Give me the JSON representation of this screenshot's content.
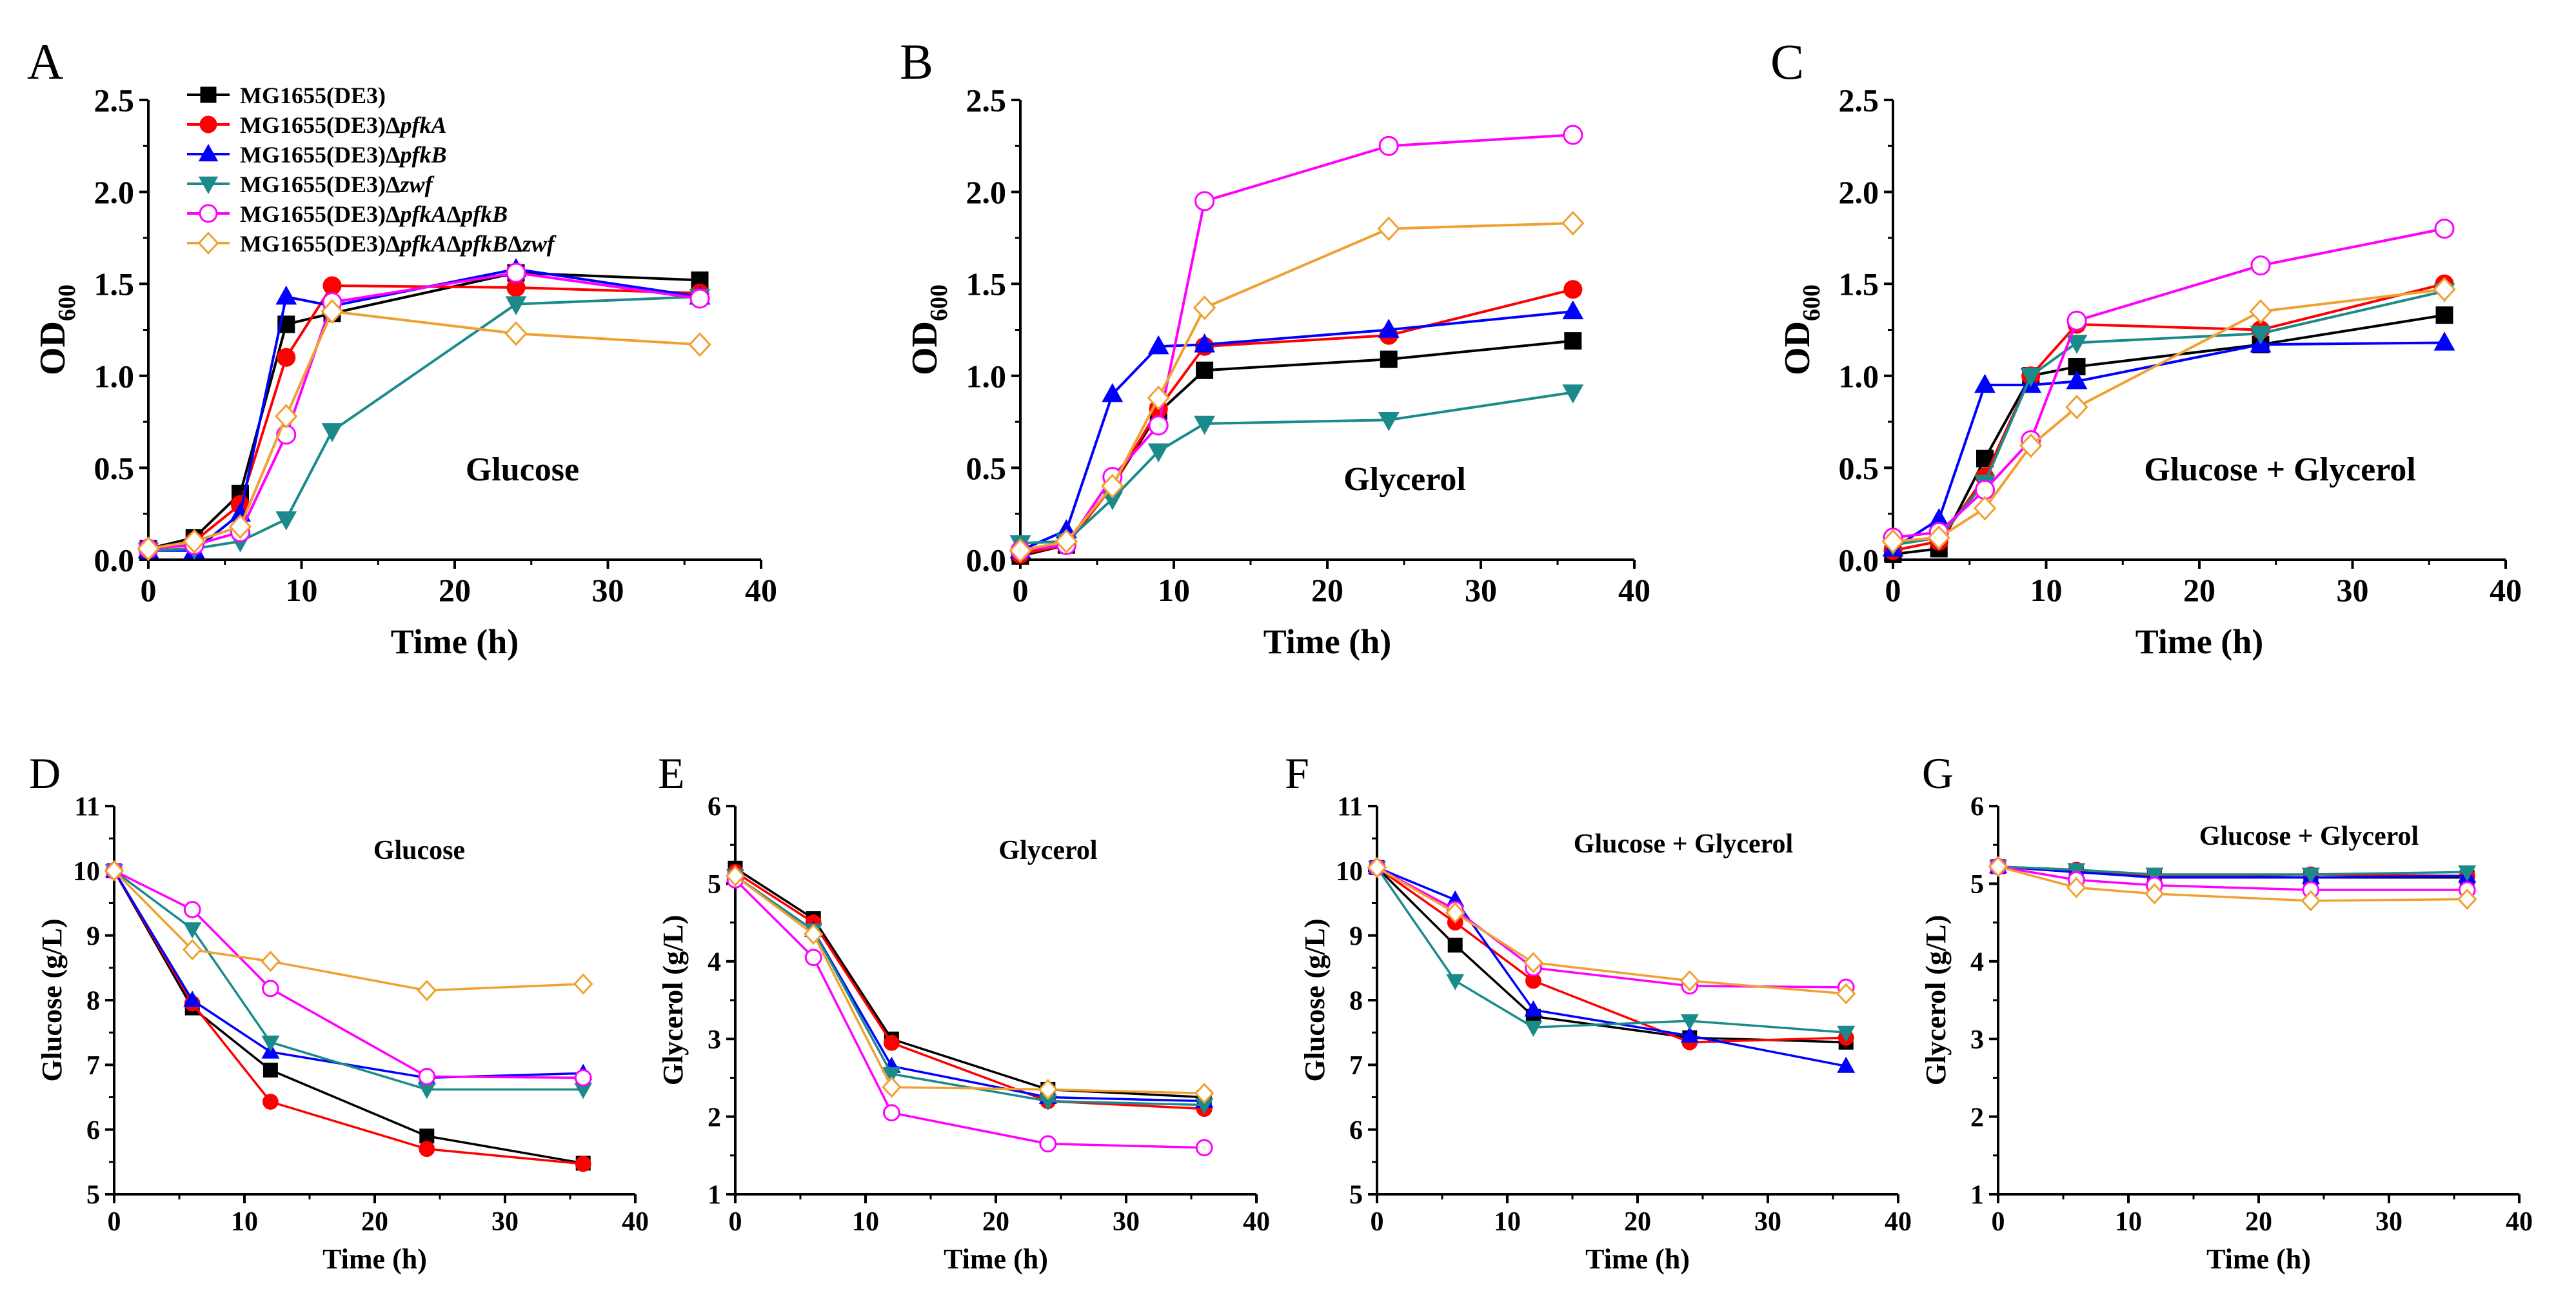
{
  "colors": {
    "s1": "#000000",
    "s2": "#ff0000",
    "s3": "#0000ff",
    "s4": "#1a8a8a",
    "s5": "#ff00ff",
    "s6": "#f0a030"
  },
  "legend_entries": [
    {
      "prefix": "MG1655(DE3)",
      "genes": []
    },
    {
      "prefix": "MG1655(DE3)",
      "genes": [
        "pfkA"
      ]
    },
    {
      "prefix": "MG1655(DE3)",
      "genes": [
        "pfkB"
      ]
    },
    {
      "prefix": "MG1655(DE3)",
      "genes": [
        "zwf"
      ]
    },
    {
      "prefix": "MG1655(DE3)",
      "genes": [
        "pfkA",
        "pfkB"
      ]
    },
    {
      "prefix": "MG1655(DE3)",
      "genes": [
        "pfkA",
        "pfkB",
        "zwf"
      ]
    }
  ],
  "chart_data": [
    {
      "panel": "A",
      "type": "line",
      "annotation": "Glucose",
      "xlabel": "Time (h)",
      "ylabel_main": "OD",
      "ylabel_sub": "600",
      "xlim": [
        0,
        40
      ],
      "ylim": [
        0,
        2.5
      ],
      "xticks": [
        0,
        10,
        20,
        30,
        40
      ],
      "yticks": [
        0.0,
        0.5,
        1.0,
        1.5,
        2.0,
        2.5
      ],
      "ydecimals": 1,
      "x": [
        0,
        3,
        6,
        9,
        12,
        24,
        36
      ],
      "series": [
        {
          "name": "MG1655(DE3)",
          "values": [
            0.06,
            0.12,
            0.36,
            1.28,
            1.34,
            1.56,
            1.52
          ]
        },
        {
          "name": "MG1655(DE3)ΔpfkA",
          "values": [
            0.06,
            0.1,
            0.3,
            1.1,
            1.49,
            1.48,
            1.45
          ]
        },
        {
          "name": "MG1655(DE3)ΔpfkB",
          "values": [
            0.05,
            0.05,
            0.25,
            1.43,
            1.38,
            1.58,
            1.43
          ]
        },
        {
          "name": "MG1655(DE3)Δzwf",
          "values": [
            0.05,
            0.06,
            0.1,
            0.22,
            0.7,
            1.39,
            1.43
          ]
        },
        {
          "name": "MG1655(DE3)ΔpfkAΔpfkB",
          "values": [
            0.06,
            0.08,
            0.15,
            0.68,
            1.4,
            1.56,
            1.42
          ]
        },
        {
          "name": "MG1655(DE3)ΔpfkAΔpfkBΔzwf",
          "values": [
            0.06,
            0.1,
            0.18,
            0.78,
            1.35,
            1.23,
            1.17
          ]
        }
      ]
    },
    {
      "panel": "B",
      "type": "line",
      "annotation": "Glycerol",
      "xlabel": "Time (h)",
      "ylabel_main": "OD",
      "ylabel_sub": "600",
      "xlim": [
        0,
        40
      ],
      "ylim": [
        0,
        2.5
      ],
      "xticks": [
        0,
        10,
        20,
        30,
        40
      ],
      "yticks": [
        0.0,
        0.5,
        1.0,
        1.5,
        2.0,
        2.5
      ],
      "ydecimals": 1,
      "x": [
        0,
        3,
        6,
        9,
        12,
        24,
        36
      ],
      "series": [
        {
          "name": "MG1655(DE3)",
          "values": [
            0.02,
            0.08,
            0.4,
            0.8,
            1.03,
            1.09,
            1.19
          ]
        },
        {
          "name": "MG1655(DE3)ΔpfkA",
          "values": [
            0.03,
            0.08,
            0.4,
            0.82,
            1.16,
            1.22,
            1.47
          ]
        },
        {
          "name": "MG1655(DE3)ΔpfkB",
          "values": [
            0.05,
            0.16,
            0.9,
            1.16,
            1.17,
            1.25,
            1.35
          ]
        },
        {
          "name": "MG1655(DE3)Δzwf",
          "values": [
            0.09,
            0.1,
            0.33,
            0.59,
            0.74,
            0.76,
            0.91
          ]
        },
        {
          "name": "MG1655(DE3)ΔpfkAΔpfkB",
          "values": [
            0.05,
            0.08,
            0.45,
            0.73,
            1.95,
            2.25,
            2.31
          ]
        },
        {
          "name": "MG1655(DE3)ΔpfkAΔpfkBΔzwf",
          "values": [
            0.05,
            0.1,
            0.4,
            0.88,
            1.37,
            1.8,
            1.83
          ]
        }
      ]
    },
    {
      "panel": "C",
      "type": "line",
      "annotation": "Glucose + Glycerol",
      "xlabel": "Time (h)",
      "ylabel_main": "OD",
      "ylabel_sub": "600",
      "xlim": [
        0,
        40
      ],
      "ylim": [
        0,
        2.5
      ],
      "xticks": [
        0,
        10,
        20,
        30,
        40
      ],
      "yticks": [
        0.0,
        0.5,
        1.0,
        1.5,
        2.0,
        2.5
      ],
      "ydecimals": 1,
      "x": [
        0,
        3,
        6,
        9,
        12,
        24,
        36
      ],
      "series": [
        {
          "name": "MG1655(DE3)",
          "values": [
            0.03,
            0.06,
            0.55,
            1.0,
            1.05,
            1.17,
            1.33
          ]
        },
        {
          "name": "MG1655(DE3)ΔpfkA",
          "values": [
            0.05,
            0.1,
            0.45,
            1.0,
            1.28,
            1.25,
            1.5
          ]
        },
        {
          "name": "MG1655(DE3)ΔpfkB",
          "values": [
            0.06,
            0.22,
            0.95,
            0.95,
            0.97,
            1.17,
            1.18
          ]
        },
        {
          "name": "MG1655(DE3)Δzwf",
          "values": [
            0.08,
            0.12,
            0.42,
            1.0,
            1.18,
            1.23,
            1.46
          ]
        },
        {
          "name": "MG1655(DE3)ΔpfkAΔpfkB",
          "values": [
            0.12,
            0.15,
            0.38,
            0.65,
            1.3,
            1.6,
            1.8
          ]
        },
        {
          "name": "MG1655(DE3)ΔpfkAΔpfkBΔzwf",
          "values": [
            0.1,
            0.12,
            0.28,
            0.62,
            0.83,
            1.35,
            1.47
          ]
        }
      ]
    },
    {
      "panel": "D",
      "type": "line",
      "annotation": "Glucose",
      "xlabel": "Time (h)",
      "ylabel_main": "Glucose (g/L)",
      "ylabel_sub": "",
      "xlim": [
        0,
        40
      ],
      "ylim": [
        5,
        11
      ],
      "xticks": [
        0,
        10,
        20,
        30,
        40
      ],
      "yticks": [
        5,
        6,
        7,
        8,
        9,
        10,
        11
      ],
      "ydecimals": 0,
      "x": [
        0,
        6,
        12,
        24,
        36
      ],
      "series": [
        {
          "name": "MG1655(DE3)",
          "values": [
            10.0,
            7.88,
            6.92,
            5.9,
            5.48
          ]
        },
        {
          "name": "MG1655(DE3)ΔpfkA",
          "values": [
            10.0,
            7.95,
            6.43,
            5.7,
            5.47
          ]
        },
        {
          "name": "MG1655(DE3)ΔpfkB",
          "values": [
            10.0,
            8.0,
            7.2,
            6.8,
            6.87
          ]
        },
        {
          "name": "MG1655(DE3)Δzwf",
          "values": [
            10.0,
            9.1,
            7.35,
            6.62,
            6.62
          ]
        },
        {
          "name": "MG1655(DE3)ΔpfkAΔpfkB",
          "values": [
            10.0,
            9.4,
            8.18,
            6.82,
            6.8
          ]
        },
        {
          "name": "MG1655(DE3)ΔpfkAΔpfkBΔzwf",
          "values": [
            10.0,
            8.78,
            8.6,
            8.15,
            8.25
          ]
        }
      ]
    },
    {
      "panel": "E",
      "type": "line",
      "annotation": "Glycerol",
      "xlabel": "Time (h)",
      "ylabel_main": "Glycerol (g/L)",
      "ylabel_sub": "",
      "xlim": [
        0,
        40
      ],
      "ylim": [
        1,
        6
      ],
      "xticks": [
        0,
        10,
        20,
        30,
        40
      ],
      "yticks": [
        1,
        2,
        3,
        4,
        5,
        6
      ],
      "ydecimals": 0,
      "x": [
        0,
        6,
        12,
        24,
        36
      ],
      "series": [
        {
          "name": "MG1655(DE3)",
          "values": [
            5.2,
            4.55,
            3.0,
            2.35,
            2.25
          ]
        },
        {
          "name": "MG1655(DE3)ΔpfkA",
          "values": [
            5.15,
            4.5,
            2.95,
            2.2,
            2.1
          ]
        },
        {
          "name": "MG1655(DE3)ΔpfkB",
          "values": [
            5.1,
            4.4,
            2.65,
            2.25,
            2.2
          ]
        },
        {
          "name": "MG1655(DE3)Δzwf",
          "values": [
            5.1,
            4.4,
            2.55,
            2.2,
            2.15
          ]
        },
        {
          "name": "MG1655(DE3)ΔpfkAΔpfkB",
          "values": [
            5.05,
            4.05,
            2.05,
            1.65,
            1.6
          ]
        },
        {
          "name": "MG1655(DE3)ΔpfkAΔpfkBΔzwf",
          "values": [
            5.1,
            4.35,
            2.38,
            2.35,
            2.3
          ]
        }
      ]
    },
    {
      "panel": "F",
      "type": "line",
      "annotation": "Glucose + Glycerol",
      "xlabel": "Time (h)",
      "ylabel_main": "Glucose (g/L)",
      "ylabel_sub": "",
      "xlim": [
        0,
        40
      ],
      "ylim": [
        5,
        11
      ],
      "xticks": [
        0,
        10,
        20,
        30,
        40
      ],
      "yticks": [
        5,
        6,
        7,
        8,
        9,
        10,
        11
      ],
      "ydecimals": 0,
      "x": [
        0,
        6,
        12,
        24,
        36
      ],
      "series": [
        {
          "name": "MG1655(DE3)",
          "values": [
            10.05,
            8.85,
            7.75,
            7.42,
            7.35
          ]
        },
        {
          "name": "MG1655(DE3)ΔpfkA",
          "values": [
            10.05,
            9.2,
            8.3,
            7.35,
            7.42
          ]
        },
        {
          "name": "MG1655(DE3)ΔpfkB",
          "values": [
            10.05,
            9.55,
            7.85,
            7.45,
            6.98
          ]
        },
        {
          "name": "MG1655(DE3)Δzwf",
          "values": [
            10.05,
            8.3,
            7.58,
            7.68,
            7.5
          ]
        },
        {
          "name": "MG1655(DE3)ΔpfkAΔpfkB",
          "values": [
            10.05,
            9.4,
            8.5,
            8.22,
            8.2
          ]
        },
        {
          "name": "MG1655(DE3)ΔpfkAΔpfkBΔzwf",
          "values": [
            10.05,
            9.35,
            8.58,
            8.3,
            8.1
          ]
        }
      ]
    },
    {
      "panel": "G",
      "type": "line",
      "annotation": "Glucose + Glycerol",
      "xlabel": "Time (h)",
      "ylabel_main": "Glycerol (g/L)",
      "ylabel_sub": "",
      "xlim": [
        0,
        40
      ],
      "ylim": [
        1,
        6
      ],
      "xticks": [
        0,
        10,
        20,
        30,
        40
      ],
      "yticks": [
        1,
        2,
        3,
        4,
        5,
        6
      ],
      "ydecimals": 0,
      "x": [
        0,
        6,
        12,
        24,
        36
      ],
      "series": [
        {
          "name": "MG1655(DE3)",
          "values": [
            5.22,
            5.15,
            5.1,
            5.08,
            5.08
          ]
        },
        {
          "name": "MG1655(DE3)ΔpfkA",
          "values": [
            5.22,
            5.18,
            5.1,
            5.12,
            5.1
          ]
        },
        {
          "name": "MG1655(DE3)ΔpfkB",
          "values": [
            5.22,
            5.15,
            5.08,
            5.08,
            5.1
          ]
        },
        {
          "name": "MG1655(DE3)Δzwf",
          "values": [
            5.22,
            5.18,
            5.12,
            5.12,
            5.15
          ]
        },
        {
          "name": "MG1655(DE3)ΔpfkAΔpfkB",
          "values": [
            5.22,
            5.05,
            4.98,
            4.92,
            4.92
          ]
        },
        {
          "name": "MG1655(DE3)ΔpfkAΔpfkBΔzwf",
          "values": [
            5.22,
            4.95,
            4.87,
            4.78,
            4.8
          ]
        }
      ]
    }
  ]
}
